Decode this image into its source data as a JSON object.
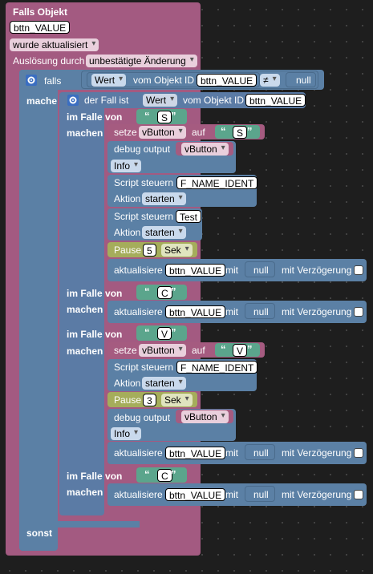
{
  "event": {
    "title": "Falls Objekt",
    "object_id": "bttn_VALUE",
    "trigger": "wurde aktualisiert",
    "cause_label": "Auslösung durch",
    "cause_value": "unbestätigte Änderung"
  },
  "if_block": {
    "falls_label": "falls",
    "mache_label": "mache",
    "sonst_label": "sonst",
    "value_prop": "Wert",
    "vom_objekt_id": "vom Objekt ID",
    "object_id": "bttn_VALUE",
    "operator": "≠",
    "null_value": "null"
  },
  "switch": {
    "label": "der Fall ist",
    "prop": "Wert",
    "vom_objekt_id": "vom Objekt ID",
    "object_id": "bttn_VALUE",
    "case_label": "im Falle von",
    "do_label": "machen",
    "cases": [
      {
        "value": "S"
      },
      {
        "value": "C"
      },
      {
        "value": "V"
      },
      {
        "value": "C"
      }
    ]
  },
  "statements": {
    "setze": "setze",
    "auf": "auf",
    "var": "vButton",
    "debug_output": "debug output",
    "info": "Info",
    "script_steuern": "Script steuern",
    "aktion": "Aktion",
    "starten": "starten",
    "script_name_1": "F_NAME_IDENT",
    "script_name_2": "Test",
    "pause": "Pause",
    "pause_unit": "Sek",
    "pause_val_1": "5",
    "pause_val_2": "3",
    "aktualisiere": "aktualisiere",
    "mit": "mit",
    "mit_verzoegerung": "mit Verzögerung",
    "update_id": "bttn_VALUE",
    "null_value": "null"
  }
}
